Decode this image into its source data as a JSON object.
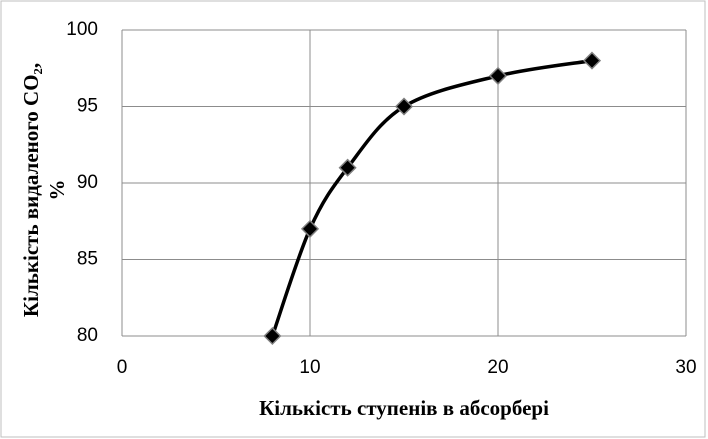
{
  "chart_data": {
    "type": "scatter",
    "x_label": "Кількість ступенів в абсорбері",
    "y_label": [
      "Кількість видаленого CO₂,",
      "%"
    ],
    "x": [
      8,
      10,
      12,
      15,
      20,
      25
    ],
    "series": [
      {
        "color": "#000000",
        "values": [
          80,
          87,
          91,
          95,
          97,
          98
        ]
      }
    ],
    "xlim": [
      0,
      30
    ],
    "xticks": [
      0,
      10,
      20,
      30
    ],
    "ylim": [
      80,
      100
    ],
    "yticks": [
      80,
      85,
      90,
      95,
      100
    ],
    "grid": true,
    "smooth": true
  }
}
